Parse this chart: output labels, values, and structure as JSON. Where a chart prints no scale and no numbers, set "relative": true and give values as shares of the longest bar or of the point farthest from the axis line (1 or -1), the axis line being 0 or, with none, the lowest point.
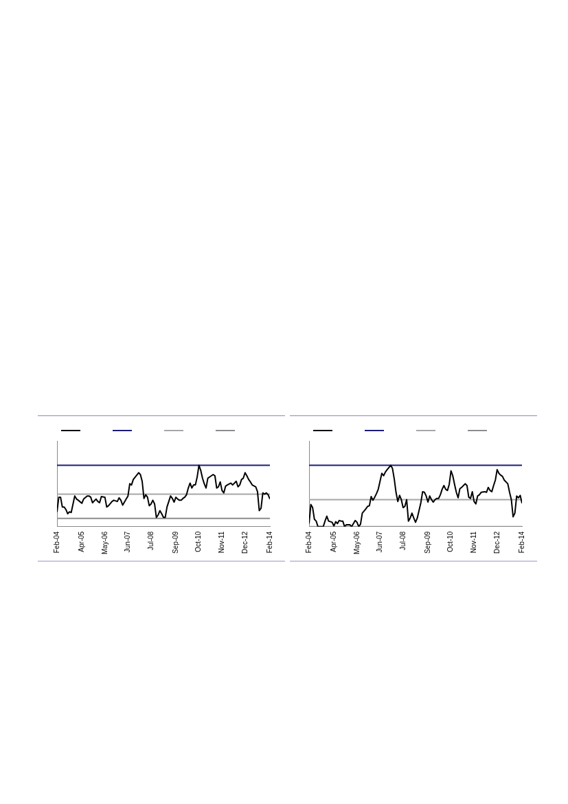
{
  "chart_data": [
    {
      "type": "line",
      "relative": true,
      "xlim": [
        "2004-02",
        "2014-02"
      ],
      "xticks": [
        {
          "value": "2004-02",
          "label": "Feb-04"
        },
        {
          "value": "2005-04",
          "label": "Apr-05"
        },
        {
          "value": "2006-05",
          "label": "May-06"
        },
        {
          "value": "2007-06",
          "label": "Jun-07"
        },
        {
          "value": "2008-07",
          "label": "Jul-08"
        },
        {
          "value": "2009-09",
          "label": "Sep-09"
        },
        {
          "value": "2010-10",
          "label": "Oct-10"
        },
        {
          "value": "2011-11",
          "label": "Nov-11"
        },
        {
          "value": "2012-12",
          "label": "Dec-12"
        },
        {
          "value": "2014-02",
          "label": "Feb-14"
        }
      ],
      "series": [
        {
          "color": "#000000",
          "x": [
            "2004-02",
            "2004-03",
            "2004-04",
            "2004-05",
            "2004-06",
            "2004-07",
            "2004-08",
            "2004-09",
            "2004-10",
            "2004-12",
            "2005-01",
            "2005-02",
            "2005-04",
            "2005-05",
            "2005-07",
            "2005-08",
            "2005-09",
            "2005-10",
            "2005-12",
            "2006-01",
            "2006-02",
            "2006-03",
            "2006-05",
            "2006-06",
            "2006-07",
            "2006-09",
            "2006-10",
            "2006-12",
            "2007-01",
            "2007-02",
            "2007-03",
            "2007-05",
            "2007-06",
            "2007-07",
            "2007-08",
            "2007-09",
            "2007-12",
            "2008-01",
            "2008-02",
            "2008-03",
            "2008-04",
            "2008-05",
            "2008-06",
            "2008-07",
            "2008-08",
            "2008-09",
            "2008-10",
            "2008-11",
            "2008-12",
            "2009-01",
            "2009-02",
            "2009-03",
            "2009-04",
            "2009-06",
            "2009-07",
            "2009-08",
            "2009-09",
            "2009-10",
            "2009-11",
            "2009-12",
            "2010-01",
            "2010-02",
            "2010-03",
            "2010-04",
            "2010-05",
            "2010-06",
            "2010-07",
            "2010-08",
            "2010-09",
            "2010-10",
            "2010-11",
            "2010-12",
            "2011-01",
            "2011-02",
            "2011-03",
            "2011-04",
            "2011-06",
            "2011-07",
            "2011-08",
            "2011-09",
            "2011-10",
            "2011-11",
            "2011-12",
            "2012-01",
            "2012-02",
            "2012-04",
            "2012-05",
            "2012-07",
            "2012-08",
            "2012-09",
            "2012-10",
            "2012-11",
            "2012-12",
            "2013-01",
            "2013-02",
            "2013-03",
            "2013-04",
            "2013-06",
            "2013-07",
            "2013-08",
            "2013-09",
            "2013-10",
            "2013-11",
            "2013-12",
            "2014-01",
            "2014-02"
          ],
          "values": [
            0.24,
            0.48,
            0.48,
            0.32,
            0.32,
            0.28,
            0.21,
            0.24,
            0.23,
            0.5,
            0.45,
            0.43,
            0.38,
            0.45,
            0.5,
            0.5,
            0.48,
            0.39,
            0.45,
            0.41,
            0.39,
            0.49,
            0.48,
            0.32,
            0.34,
            0.41,
            0.43,
            0.41,
            0.47,
            0.43,
            0.35,
            0.45,
            0.5,
            0.7,
            0.68,
            0.77,
            0.88,
            0.85,
            0.74,
            0.46,
            0.52,
            0.48,
            0.34,
            0.37,
            0.43,
            0.37,
            0.15,
            0.19,
            0.26,
            0.21,
            0.15,
            0.15,
            0.32,
            0.5,
            0.46,
            0.4,
            0.48,
            0.45,
            0.43,
            0.43,
            0.46,
            0.48,
            0.52,
            0.63,
            0.71,
            0.63,
            0.68,
            0.68,
            0.81,
            1,
            0.92,
            0.79,
            0.7,
            0.63,
            0.79,
            0.81,
            0.85,
            0.83,
            0.63,
            0.65,
            0.73,
            0.59,
            0.55,
            0.66,
            0.68,
            0.71,
            0.68,
            0.74,
            0.65,
            0.68,
            0.77,
            0.79,
            0.88,
            0.83,
            0.77,
            0.73,
            0.68,
            0.65,
            0.57,
            0.26,
            0.3,
            0.55,
            0.53,
            0.55,
            0.52,
            0.45
          ]
        },
        {
          "color": "#1c1c78",
          "x": [
            "2004-02",
            "2014-02"
          ],
          "values": [
            1,
            1
          ]
        },
        {
          "color": "#a6a6a6",
          "x": [
            "2004-02",
            "2014-02"
          ],
          "values": [
            0.53,
            0.53
          ]
        },
        {
          "color": "#8c8c8c",
          "x": [
            "2004-02",
            "2014-02"
          ],
          "values": [
            0.135,
            0.135
          ]
        }
      ]
    },
    {
      "type": "line",
      "relative": true,
      "xlim": [
        "2004-02",
        "2014-02"
      ],
      "xticks": [
        {
          "value": "2004-02",
          "label": "Feb-04"
        },
        {
          "value": "2005-04",
          "label": "Apr-05"
        },
        {
          "value": "2006-05",
          "label": "May-06"
        },
        {
          "value": "2007-06",
          "label": "Jun-07"
        },
        {
          "value": "2008-07",
          "label": "Jul-08"
        },
        {
          "value": "2009-09",
          "label": "Sep-09"
        },
        {
          "value": "2010-10",
          "label": "Oct-10"
        },
        {
          "value": "2011-11",
          "label": "Nov-11"
        },
        {
          "value": "2012-12",
          "label": "Dec-12"
        },
        {
          "value": "2014-02",
          "label": "Feb-14"
        }
      ],
      "series": [
        {
          "color": "#000000",
          "x": [
            "2004-02",
            "2004-03",
            "2004-04",
            "2004-05",
            "2004-06",
            "2004-07",
            "2004-09",
            "2004-10",
            "2004-11",
            "2004-12",
            "2005-01",
            "2005-03",
            "2005-04",
            "2005-05",
            "2005-06",
            "2005-07",
            "2005-08",
            "2005-09",
            "2005-10",
            "2005-11",
            "2006-01",
            "2006-02",
            "2006-03",
            "2006-04",
            "2006-05",
            "2006-06",
            "2006-07",
            "2006-08",
            "2006-10",
            "2006-11",
            "2006-12",
            "2007-01",
            "2007-02",
            "2007-03",
            "2007-04",
            "2007-05",
            "2007-06",
            "2007-07",
            "2007-08",
            "2007-09",
            "2007-10",
            "2007-12",
            "2008-01",
            "2008-02",
            "2008-03",
            "2008-04",
            "2008-05",
            "2008-06",
            "2008-07",
            "2008-08",
            "2008-09",
            "2008-10",
            "2008-11",
            "2008-12",
            "2009-01",
            "2009-02",
            "2009-03",
            "2009-05",
            "2009-06",
            "2009-07",
            "2009-08",
            "2009-09",
            "2009-10",
            "2009-11",
            "2009-12",
            "2010-01",
            "2010-02",
            "2010-03",
            "2010-04",
            "2010-05",
            "2010-06",
            "2010-07",
            "2010-08",
            "2010-09",
            "2010-10",
            "2010-11",
            "2010-12",
            "2011-01",
            "2011-02",
            "2011-03",
            "2011-04",
            "2011-05",
            "2011-06",
            "2011-07",
            "2011-08",
            "2011-09",
            "2011-10",
            "2011-11",
            "2011-12",
            "2012-01",
            "2012-02",
            "2012-03",
            "2012-05",
            "2012-06",
            "2012-07",
            "2012-08",
            "2012-09",
            "2012-10",
            "2012-11",
            "2012-12",
            "2013-01",
            "2013-02",
            "2013-03",
            "2013-04",
            "2013-06",
            "2013-07",
            "2013-08",
            "2013-09",
            "2013-10",
            "2013-11",
            "2013-12",
            "2014-01",
            "2014-02"
          ],
          "values": [
            0.05,
            0.36,
            0.31,
            0.12,
            0.09,
            0,
            0,
            0,
            0.09,
            0.17,
            0.09,
            0.07,
            0.01,
            0.08,
            0.05,
            0.1,
            0.09,
            0.09,
            0,
            0.03,
            0.03,
            0,
            0.05,
            0.1,
            0.07,
            0,
            0.04,
            0.22,
            0.29,
            0.33,
            0.34,
            0.49,
            0.43,
            0.48,
            0.54,
            0.61,
            0.74,
            0.87,
            0.83,
            0.89,
            0.93,
            1,
            0.95,
            0.78,
            0.56,
            0.41,
            0.51,
            0.44,
            0.31,
            0.33,
            0.44,
            0.09,
            0.14,
            0.22,
            0.14,
            0.07,
            0.14,
            0.39,
            0.57,
            0.56,
            0.5,
            0.4,
            0.5,
            0.44,
            0.4,
            0.44,
            0.46,
            0.46,
            0.52,
            0.61,
            0.67,
            0.61,
            0.59,
            0.69,
            0.91,
            0.83,
            0.69,
            0.56,
            0.47,
            0.62,
            0.64,
            0.67,
            0.7,
            0.67,
            0.48,
            0.46,
            0.57,
            0.41,
            0.37,
            0.5,
            0.52,
            0.56,
            0.57,
            0.56,
            0.64,
            0.59,
            0.57,
            0.67,
            0.76,
            0.93,
            0.87,
            0.84,
            0.82,
            0.76,
            0.7,
            0.56,
            0.44,
            0.16,
            0.22,
            0.5,
            0.47,
            0.51,
            0.38
          ]
        },
        {
          "color": "#1c1c78",
          "x": [
            "2004-02",
            "2014-02"
          ],
          "values": [
            1,
            1
          ]
        },
        {
          "color": "#a6a6a6",
          "x": [
            "2004-02",
            "2014-02"
          ],
          "values": [
            0.44,
            0.44
          ]
        },
        {
          "color": "#8c8c8c",
          "x": [
            "2004-02",
            "2014-02"
          ],
          "values": [
            0,
            0
          ]
        }
      ]
    }
  ]
}
